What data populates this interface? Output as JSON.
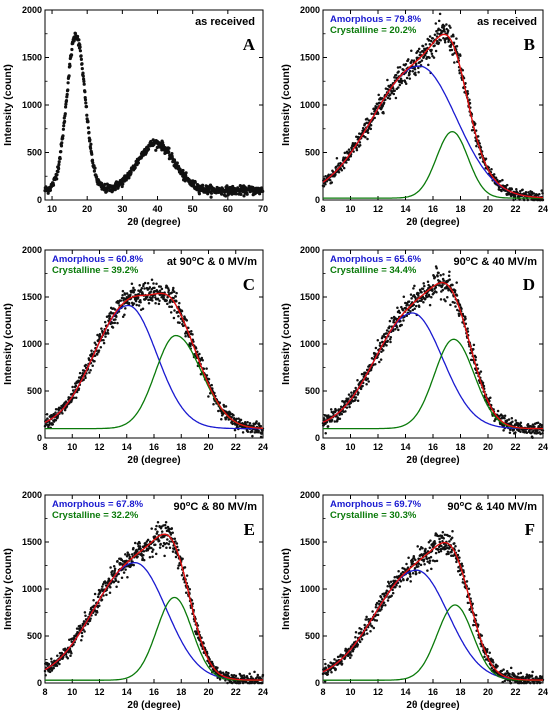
{
  "figure": {
    "x_axis_label": "2θ (degree)",
    "y_axis_label": "Intensity (count)"
  },
  "colors": {
    "data_points": "#111111",
    "amorphous": "#1a1ad0",
    "crystalline": "#0a7a0a",
    "fit": "#e01010"
  },
  "chart_data": [
    {
      "type": "scatter",
      "panel": "A",
      "condition": "as received",
      "xlim": [
        8,
        70
      ],
      "ylim": [
        0,
        2000
      ],
      "xticks": [
        10,
        20,
        30,
        40,
        50,
        60,
        70
      ],
      "yticks": [
        0,
        500,
        1000,
        1500,
        2000
      ],
      "legend": [],
      "peaks": [
        {
          "center": 16.8,
          "height": 1640,
          "width": 2.6
        },
        {
          "center": 39.5,
          "height": 500,
          "width": 5.2
        }
      ],
      "baseline": 100
    },
    {
      "type": "scatter",
      "panel": "B",
      "condition": "as received",
      "xlim": [
        8,
        24
      ],
      "ylim": [
        0,
        2000
      ],
      "xticks": [
        8,
        10,
        12,
        14,
        16,
        18,
        20,
        22,
        24
      ],
      "yticks": [
        0,
        500,
        1000,
        1500,
        2000
      ],
      "legend": [
        {
          "text": "Amorphous = 79.8%",
          "series": "amorphous"
        },
        {
          "text": "Crystalline = 20.2%",
          "series": "crystalline"
        }
      ],
      "components": {
        "amorphous": {
          "center": 15.0,
          "height": 1390,
          "sigma_left": 3.4,
          "sigma_right": 2.7
        },
        "crystalline": {
          "center": 17.4,
          "height": 700,
          "sigma_left": 1.15,
          "sigma_right": 1.15
        }
      },
      "baseline": 20
    },
    {
      "type": "scatter",
      "panel": "C",
      "condition": "at 90°C & 0 MV/m",
      "xlim": [
        8,
        24
      ],
      "ylim": [
        0,
        2000
      ],
      "xticks": [
        8,
        10,
        12,
        14,
        16,
        18,
        20,
        22,
        24
      ],
      "yticks": [
        0,
        500,
        1000,
        1500,
        2000
      ],
      "legend": [
        {
          "text": "Amorphous = 60.8%",
          "series": "amorphous"
        },
        {
          "text": "Crystalline = 39.2%",
          "series": "crystalline"
        }
      ],
      "components": {
        "amorphous": {
          "center": 14.1,
          "height": 1310,
          "sigma_left": 2.5,
          "sigma_right": 2.1
        },
        "crystalline": {
          "center": 17.6,
          "height": 990,
          "sigma_left": 1.5,
          "sigma_right": 1.9
        }
      },
      "baseline": 100
    },
    {
      "type": "scatter",
      "panel": "D",
      "condition": "90°C & 40 MV/m",
      "xlim": [
        8,
        24
      ],
      "ylim": [
        0,
        2000
      ],
      "xticks": [
        8,
        10,
        12,
        14,
        16,
        18,
        20,
        22,
        24
      ],
      "yticks": [
        0,
        500,
        1000,
        1500,
        2000
      ],
      "legend": [
        {
          "text": "Amorphous = 65.6%",
          "series": "amorphous"
        },
        {
          "text": "Crystalline = 34.4%",
          "series": "crystalline"
        }
      ],
      "components": {
        "amorphous": {
          "center": 14.5,
          "height": 1230,
          "sigma_left": 2.7,
          "sigma_right": 2.2
        },
        "crystalline": {
          "center": 17.5,
          "height": 950,
          "sigma_left": 1.4,
          "sigma_right": 1.5
        }
      },
      "baseline": 100
    },
    {
      "type": "scatter",
      "panel": "E",
      "condition": "90°C & 80 MV/m",
      "xlim": [
        8,
        24
      ],
      "ylim": [
        0,
        2000
      ],
      "xticks": [
        8,
        10,
        12,
        14,
        16,
        18,
        20,
        22,
        24
      ],
      "yticks": [
        0,
        500,
        1000,
        1500,
        2000
      ],
      "legend": [
        {
          "text": "Amorphous = 67.8%",
          "series": "amorphous"
        },
        {
          "text": "Crystalline = 32.2%",
          "series": "crystalline"
        }
      ],
      "components": {
        "amorphous": {
          "center": 14.6,
          "height": 1250,
          "sigma_left": 3.0,
          "sigma_right": 2.3
        },
        "crystalline": {
          "center": 17.5,
          "height": 880,
          "sigma_left": 1.3,
          "sigma_right": 1.3
        }
      },
      "baseline": 30
    },
    {
      "type": "scatter",
      "panel": "F",
      "condition": "90°C & 140 MV/m",
      "xlim": [
        8,
        24
      ],
      "ylim": [
        0,
        2000
      ],
      "xticks": [
        8,
        10,
        12,
        14,
        16,
        18,
        20,
        22,
        24
      ],
      "yticks": [
        0,
        500,
        1000,
        1500,
        2000
      ],
      "legend": [
        {
          "text": "Amorphous = 69.7%",
          "series": "amorphous"
        },
        {
          "text": "Crystalline = 30.3%",
          "series": "crystalline"
        }
      ],
      "components": {
        "amorphous": {
          "center": 14.8,
          "height": 1170,
          "sigma_left": 3.0,
          "sigma_right": 2.3
        },
        "crystalline": {
          "center": 17.6,
          "height": 800,
          "sigma_left": 1.3,
          "sigma_right": 1.3
        }
      },
      "baseline": 30
    }
  ]
}
